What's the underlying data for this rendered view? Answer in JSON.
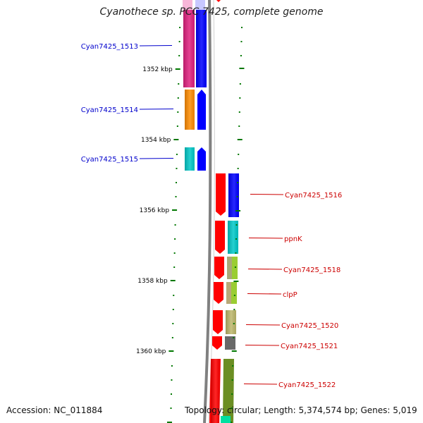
{
  "title": "Cyanothece sp. PCC 7425, complete genome",
  "accession": "Accession: NC_011884",
  "summary": "Topology: circular; Length: 5,374,574 bp; Genes: 5,019",
  "ticks": [
    {
      "label": "1352 kbp"
    },
    {
      "label": "1354 kbp"
    },
    {
      "label": "1356 kbp"
    },
    {
      "label": "1358 kbp"
    },
    {
      "label": "1360 kbp"
    }
  ],
  "genes_left": [
    {
      "label": "Cyan7425_1513",
      "color1": "#e0207f",
      "color2": "#0000ff"
    },
    {
      "label": "Cyan7425_1514",
      "color1": "#ff8c00",
      "color2": "#0000ff"
    },
    {
      "label": "Cyan7425_1515",
      "color1": "#00c8c8",
      "color2": "#0000ff"
    }
  ],
  "genes_right": [
    {
      "label": "Cyan7425_1516",
      "color1": "#ff0000",
      "color2": "#0000ff"
    },
    {
      "label": "ppnK",
      "color1": "#ff0000",
      "color2": "#00c8c8"
    },
    {
      "label": "Cyan7425_1518",
      "color1": "#ff0000",
      "color2": "#9acd32"
    },
    {
      "label": "clpP",
      "color1": "#ff0000",
      "color2": "#9acd32"
    },
    {
      "label": "Cyan7425_1520",
      "color1": "#ff0000",
      "color2": "#bdb76b"
    },
    {
      "label": "Cyan7425_1521",
      "color1": "#ff0000",
      "color2": "#696969"
    },
    {
      "label": "Cyan7425_1522",
      "color1": "#ff0000",
      "color2": "#6b8e23"
    }
  ],
  "colors": {
    "left_label": "#0000cc",
    "right_label": "#cc0000",
    "tick": "#007700",
    "backbone": "#808080"
  }
}
